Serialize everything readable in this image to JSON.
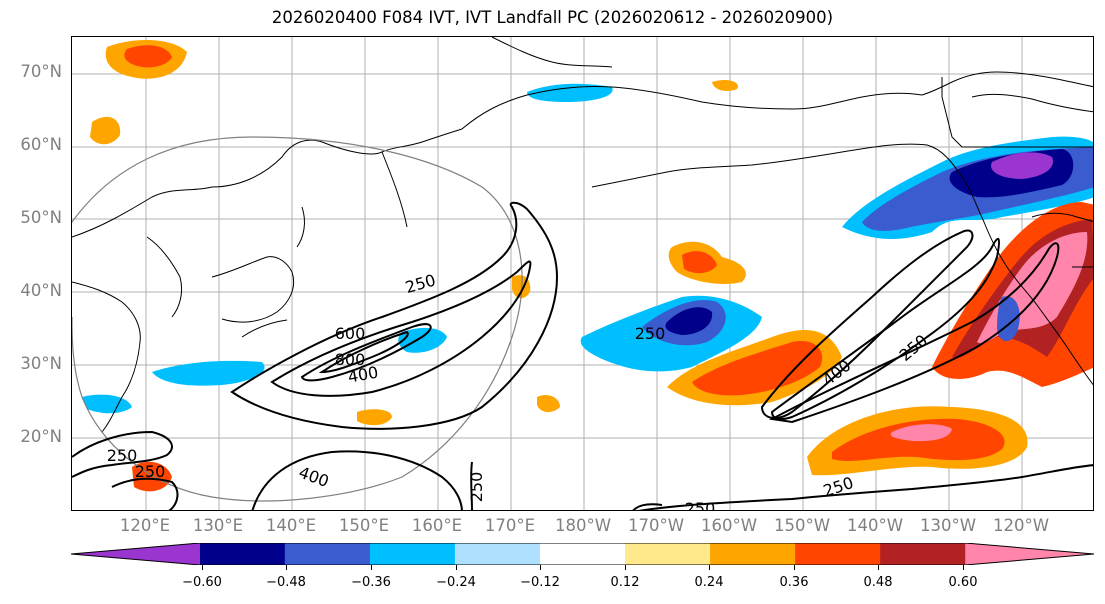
{
  "title": "2026020400 F084 IVT, IVT Landfall PC (2026020612 - 2026020900)",
  "lat_labels": [
    "70°N",
    "60°N",
    "50°N",
    "40°N",
    "30°N",
    "20°N"
  ],
  "lon_labels": [
    "120°E",
    "130°E",
    "140°E",
    "150°E",
    "160°E",
    "170°E",
    "180°W",
    "170°W",
    "160°W",
    "150°W",
    "140°W",
    "130°W",
    "120°W"
  ],
  "contour_labels": [
    "250",
    "600",
    "800",
    "400",
    "250",
    "400",
    "250",
    "250",
    "400",
    "250",
    "250",
    "250",
    "250"
  ],
  "colorbar": {
    "colors": [
      "#9a35cf",
      "#00008b",
      "#3a5ccf",
      "#00bfff",
      "#aee0ff",
      "#ffffff",
      "#ffe98a",
      "#ffa500",
      "#ff4500",
      "#b22222",
      "#ff85ab"
    ],
    "tick_labels": [
      "−0.60",
      "−0.48",
      "−0.36",
      "−0.24",
      "−0.12",
      "0.12",
      "0.24",
      "0.36",
      "0.48",
      "0.60"
    ]
  }
}
